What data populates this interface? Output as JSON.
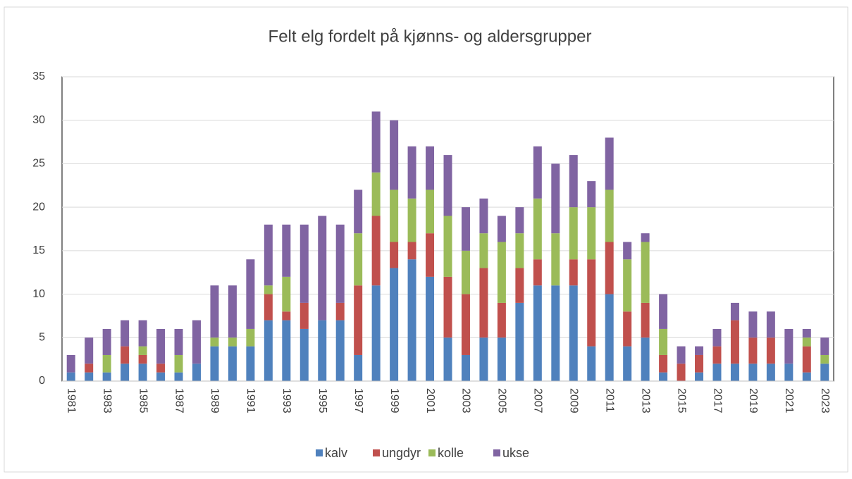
{
  "chart_data": {
    "type": "stacked_bar",
    "title": "Felt elg fordelt på kjønns- og aldersgrupper",
    "categories": [
      "1981",
      null,
      "1983",
      null,
      "1985",
      null,
      "1987",
      null,
      "1989",
      null,
      "1991",
      null,
      "1993",
      null,
      "1995",
      null,
      "1997",
      null,
      "1999",
      null,
      "2001",
      null,
      "2003",
      null,
      "2005",
      null,
      "2007",
      null,
      "2009",
      null,
      "2011",
      null,
      "2013",
      null,
      "2015",
      null,
      "2017",
      null,
      "2019",
      null,
      "2021",
      null,
      "2023"
    ],
    "series": [
      {
        "name": "kalv",
        "color": "#4f81bd",
        "values": [
          1,
          1,
          1,
          2,
          2,
          1,
          1,
          2,
          4,
          4,
          4,
          7,
          7,
          6,
          7,
          7,
          3,
          11,
          13,
          14,
          12,
          5,
          3,
          5,
          5,
          9,
          11,
          11,
          11,
          4,
          10,
          4,
          5,
          1,
          0,
          1,
          2,
          2,
          2,
          2,
          2,
          1,
          2
        ]
      },
      {
        "name": "ungdyr",
        "color": "#c0504d",
        "values": [
          0,
          1,
          0,
          2,
          1,
          1,
          0,
          0,
          0,
          0,
          0,
          3,
          1,
          3,
          0,
          2,
          8,
          8,
          3,
          2,
          5,
          7,
          7,
          8,
          4,
          4,
          3,
          0,
          3,
          10,
          6,
          4,
          4,
          2,
          2,
          2,
          2,
          5,
          3,
          3,
          0,
          3,
          0
        ]
      },
      {
        "name": "kolle",
        "color": "#9bbb59",
        "values": [
          0,
          0,
          2,
          0,
          1,
          0,
          2,
          0,
          1,
          1,
          2,
          1,
          4,
          0,
          0,
          0,
          6,
          5,
          6,
          5,
          5,
          7,
          5,
          4,
          7,
          4,
          7,
          6,
          6,
          6,
          6,
          6,
          7,
          3,
          0,
          0,
          0,
          0,
          0,
          0,
          0,
          1,
          1
        ]
      },
      {
        "name": "ukse",
        "color": "#8064a2",
        "values": [
          2,
          3,
          3,
          3,
          3,
          4,
          3,
          5,
          6,
          6,
          8,
          7,
          6,
          9,
          12,
          9,
          5,
          7,
          8,
          6,
          5,
          7,
          5,
          4,
          3,
          3,
          6,
          8,
          6,
          3,
          6,
          2,
          1,
          4,
          2,
          1,
          2,
          2,
          3,
          3,
          4,
          1,
          2
        ]
      }
    ],
    "ylim": [
      0,
      35
    ],
    "yticks": [
      0,
      5,
      10,
      15,
      20,
      25,
      30,
      35
    ],
    "grid": true,
    "legend": "bottom"
  }
}
